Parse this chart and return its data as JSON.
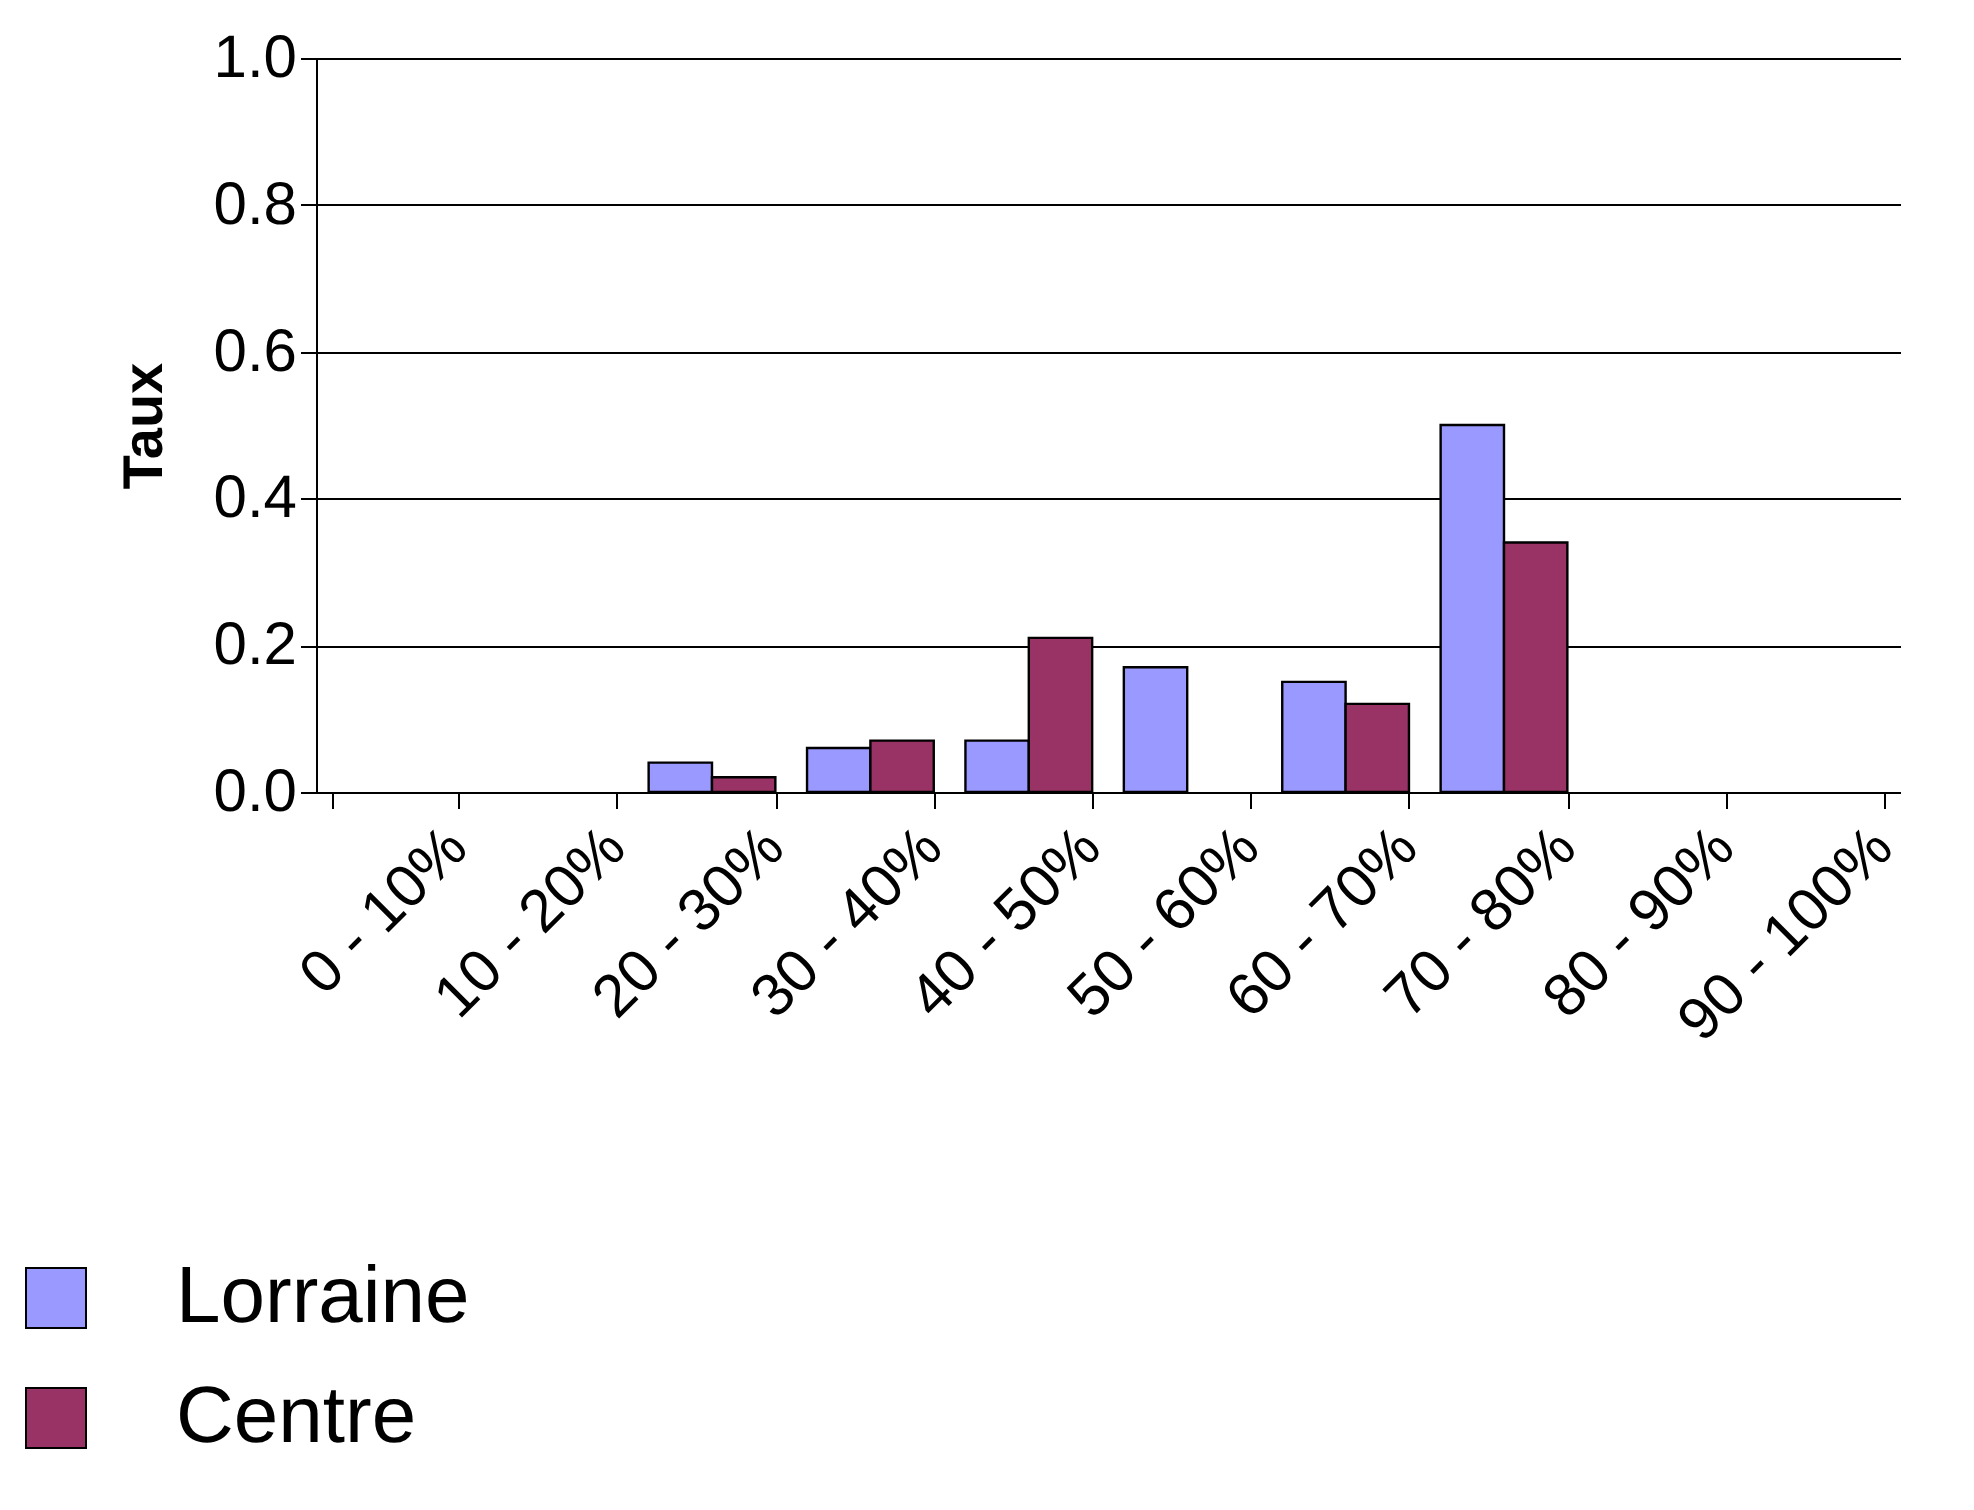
{
  "chart_data": {
    "type": "bar",
    "ylabel": "Taux",
    "categories": [
      "0 - 10%",
      "10 - 20%",
      "20 - 30%",
      "30 - 40%",
      "40 - 50%",
      "50 - 60%",
      "60 - 70%",
      "70 - 80%",
      "80 - 90%",
      "90 - 100%"
    ],
    "series": [
      {
        "name": "Lorraine",
        "color": "#9999ff",
        "values": [
          0,
          0,
          0.04,
          0.06,
          0.07,
          0.17,
          0.15,
          0.5,
          0,
          0
        ]
      },
      {
        "name": "Centre",
        "color": "#993366",
        "values": [
          0,
          0,
          0.02,
          0.07,
          0.21,
          0,
          0.12,
          0.34,
          0,
          0
        ]
      }
    ],
    "ylim": [
      0,
      1
    ],
    "yticks": [
      {
        "value": 0,
        "label": "0.0"
      },
      {
        "value": 0.2,
        "label": "0.2"
      },
      {
        "value": 0.4,
        "label": "0.4"
      },
      {
        "value": 0.6,
        "label": "0.6"
      },
      {
        "value": 0.8,
        "label": "0.8"
      },
      {
        "value": 1,
        "label": "1.0"
      }
    ],
    "grid": "y",
    "legend": "bottom"
  }
}
